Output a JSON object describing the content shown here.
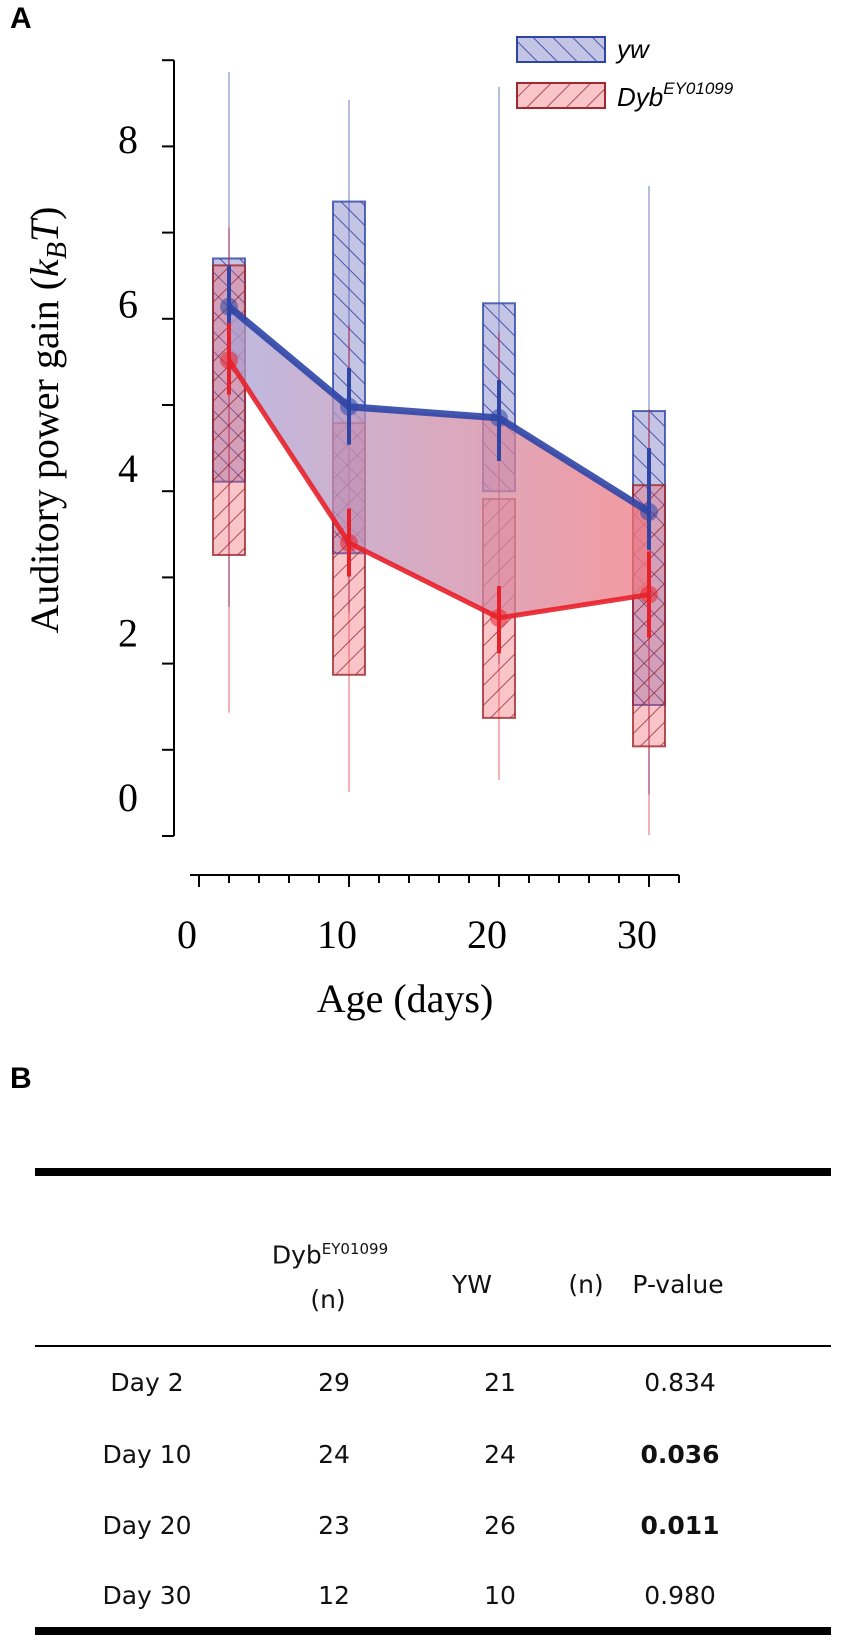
{
  "panels": {
    "a": "A",
    "b": "B"
  },
  "chart_data": {
    "type": "box",
    "xlabel": "Age (days)",
    "ylabel_main": "Auditory power gain (",
    "ylabel_k": "k",
    "ylabel_sub": "B",
    "ylabel_T": "T",
    "ylabel_close": ")",
    "xlim": [
      0,
      32
    ],
    "ylim": [
      0,
      9
    ],
    "xticks": [
      0,
      10,
      20,
      30
    ],
    "xtick_labels": [
      "0",
      "10",
      "20",
      "30"
    ],
    "yticks": [
      0,
      2,
      4,
      6,
      8
    ],
    "ytick_labels": [
      "0",
      "2",
      "4",
      "6",
      "8"
    ],
    "x": [
      2,
      10,
      20,
      30
    ],
    "legend_position": "top-right",
    "series": [
      {
        "name": "yw",
        "legend_label": "yw",
        "color": "#2e45a6",
        "mean": [
          6.14,
          4.98,
          4.85,
          3.76
        ],
        "err_low": [
          5.65,
          4.54,
          4.35,
          3.32
        ],
        "err_high": [
          6.62,
          5.43,
          5.29,
          4.5
        ],
        "box_low": [
          4.11,
          3.28,
          4.0,
          1.52
        ],
        "box_high": [
          6.7,
          7.36,
          6.18,
          4.93
        ],
        "whisker_low": [
          2.66,
          2.59,
          2.0,
          0.48
        ],
        "whisker_high": [
          8.86,
          8.54,
          8.69,
          7.54
        ]
      },
      {
        "name": "DybEY01099",
        "legend_label": "Dyb",
        "legend_sup": "EY01099",
        "color": "#e8202a",
        "mean": [
          5.52,
          3.4,
          2.53,
          2.8
        ],
        "err_low": [
          5.12,
          3.01,
          2.12,
          2.3
        ],
        "err_high": [
          5.95,
          3.8,
          2.9,
          3.3
        ],
        "box_low": [
          3.26,
          1.87,
          1.37,
          1.04
        ],
        "box_high": [
          6.62,
          4.79,
          3.91,
          4.07
        ],
        "whisker_low": [
          1.43,
          0.51,
          0.65,
          0.01
        ],
        "whisker_high": [
          7.06,
          5.93,
          5.84,
          4.95
        ]
      }
    ]
  },
  "table": {
    "headers": {
      "dyb": "Dyb",
      "dyb_sup": "EY01099",
      "dyb_n": "(n)",
      "yw": "YW",
      "yw_n": "(n)",
      "pvalue": "P-value"
    },
    "rows": [
      {
        "day": "Day 2",
        "dyb_n": "29",
        "yw_n": "21",
        "p": "0.834",
        "significant": false
      },
      {
        "day": "Day 10",
        "dyb_n": "24",
        "yw_n": "24",
        "p": "0.036",
        "significant": true
      },
      {
        "day": "Day 20",
        "dyb_n": "23",
        "yw_n": "26",
        "p": "0.011",
        "significant": true
      },
      {
        "day": "Day 30",
        "dyb_n": "12",
        "yw_n": "10",
        "p": "0.980",
        "significant": false
      }
    ]
  }
}
